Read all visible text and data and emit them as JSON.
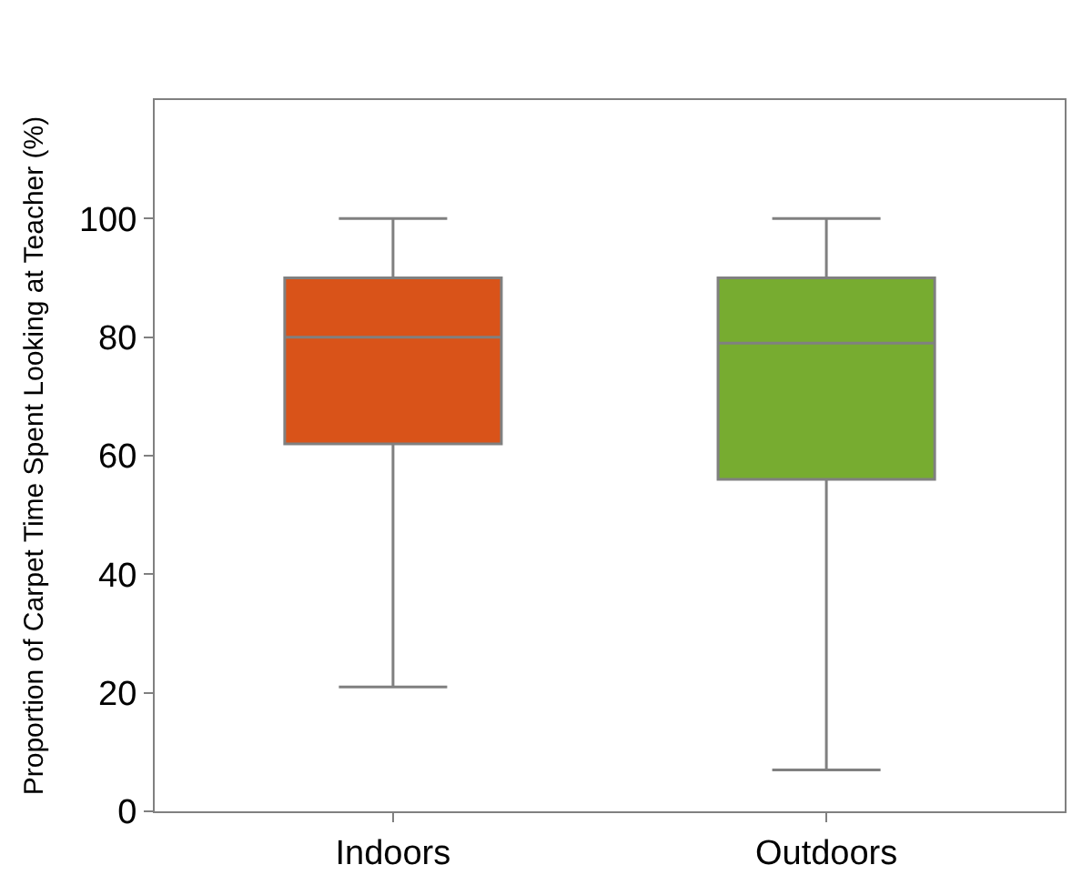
{
  "chart_data": {
    "type": "box",
    "ylabel": "Proportion of Carpet Time Spent Looking at Teacher (%)",
    "categories": [
      "Indoors",
      "Outdoors"
    ],
    "boxes": [
      {
        "low": 21,
        "q1": 62,
        "median": 80,
        "q3": 90,
        "high": 100
      },
      {
        "low": 7,
        "q1": 56,
        "median": 79,
        "q3": 90,
        "high": 100
      }
    ],
    "colors": [
      "#d95319",
      "#77ac30"
    ],
    "ylim": [
      0,
      120
    ],
    "yticks": [
      0,
      20,
      40,
      60,
      80,
      100
    ]
  }
}
